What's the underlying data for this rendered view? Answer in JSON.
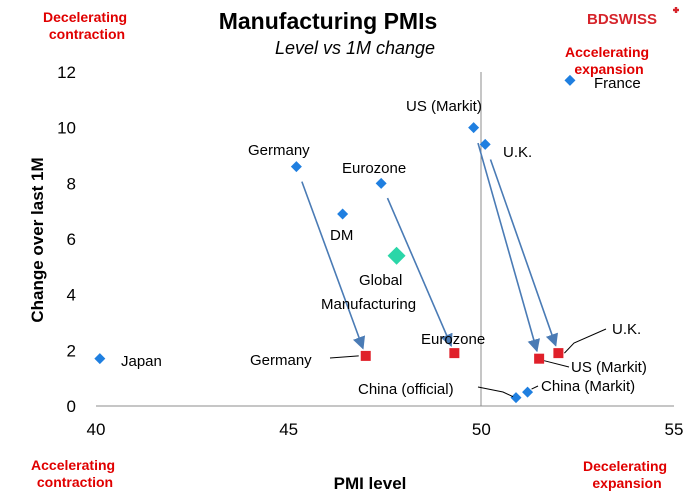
{
  "chart_data": {
    "type": "scatter",
    "title": "Manufacturing PMIs",
    "subtitle": "Level vs 1M change",
    "xlabel": "PMI level",
    "ylabel": "Change over last 1M",
    "xlim": [
      40,
      55
    ],
    "ylim": [
      0,
      12
    ],
    "x_ticks": [
      "40",
      "45",
      "50",
      "55"
    ],
    "y_ticks": [
      "0",
      "2",
      "4",
      "6",
      "8",
      "10",
      "12"
    ],
    "brand": "BDSWISS",
    "quadrant_labels": {
      "top_left": "Decelerating contraction",
      "top_right": "Accelerating expansion",
      "bottom_left": "Accelerating contraction",
      "bottom_right": "Decelerating expansion"
    },
    "colors": {
      "previous": "#1f7fe0",
      "current": "#e0202a",
      "global": "#2bd6a8",
      "arrow": "#4a7bb5"
    },
    "series": [
      {
        "key": "previous",
        "points": [
          {
            "label": "France",
            "x": 52.3,
            "y": 11.7
          },
          {
            "label": "US (Markit)",
            "x": 49.8,
            "y": 10.0
          },
          {
            "label": "U.K.",
            "x": 50.1,
            "y": 9.4
          },
          {
            "label": "Germany",
            "x": 45.2,
            "y": 8.6
          },
          {
            "label": "Eurozone",
            "x": 47.4,
            "y": 8.0
          },
          {
            "label": "DM",
            "x": 46.4,
            "y": 6.9
          },
          {
            "label": "Japan",
            "x": 40.1,
            "y": 1.7
          },
          {
            "label": "China (official)",
            "x": 50.9,
            "y": 0.3
          },
          {
            "label": "China (Markit)",
            "x": 51.2,
            "y": 0.5
          }
        ]
      },
      {
        "key": "current",
        "points": [
          {
            "label": "Germany",
            "x": 47.0,
            "y": 1.8
          },
          {
            "label": "Eurozone",
            "x": 49.3,
            "y": 1.9
          },
          {
            "label": "US (Markit)",
            "x": 51.5,
            "y": 1.7
          },
          {
            "label": "U.K.",
            "x": 52.0,
            "y": 1.9
          }
        ]
      },
      {
        "key": "global",
        "points": [
          {
            "label": "Global Manufacturing",
            "x": 47.8,
            "y": 5.4
          }
        ]
      }
    ],
    "arrows": [
      {
        "from": [
          45.2,
          8.6
        ],
        "to": [
          47.0,
          1.8
        ]
      },
      {
        "from": [
          47.4,
          8.0
        ],
        "to": [
          49.3,
          1.9
        ]
      },
      {
        "from": [
          49.8,
          10.0
        ],
        "to": [
          51.5,
          1.7
        ]
      },
      {
        "from": [
          50.1,
          9.4
        ],
        "to": [
          52.0,
          1.9
        ]
      }
    ]
  }
}
